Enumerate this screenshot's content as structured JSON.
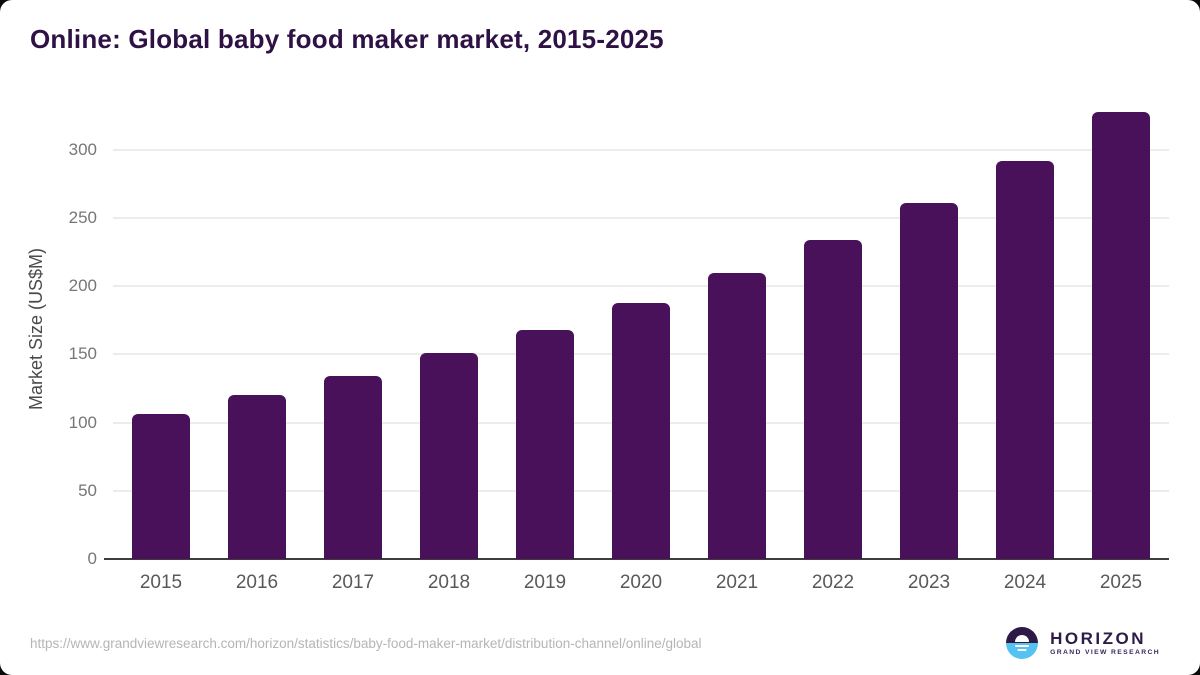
{
  "header": {
    "title": "Online: Global baby food maker market, 2015-2025"
  },
  "chart_data": {
    "type": "bar",
    "title": "Online: Global baby food maker market, 2015-2025",
    "categories": [
      "2015",
      "2016",
      "2017",
      "2018",
      "2019",
      "2020",
      "2021",
      "2022",
      "2023",
      "2024",
      "2025"
    ],
    "values": [
      106,
      120,
      134,
      151,
      168,
      188,
      210,
      234,
      261,
      292,
      328
    ],
    "xlabel": "",
    "ylabel": "Market Size (US$M)",
    "ylim": [
      0,
      335
    ],
    "y_ticks": [
      0,
      50,
      100,
      150,
      200,
      250,
      300
    ],
    "grid": "horizontal",
    "legend": false,
    "bar_color": "#491159"
  },
  "footer": {
    "source_url": "https://www.grandviewresearch.com/horizon/statistics/baby-food-maker-market/distribution-channel/online/global",
    "logo": {
      "brand": "HORIZON",
      "subbrand": "GRAND VIEW RESEARCH"
    }
  },
  "colors": {
    "bar": "#491159",
    "title_text": "#2f1245",
    "axis_line": "#3d3d3d",
    "gridline": "#ececec",
    "tick_label": "#767676",
    "x_label": "#58595b",
    "y_axis_title": "#4a4a4a",
    "url_text": "#b5b5b5",
    "logo_purple": "#2e1a47",
    "logo_blue": "#54c3f1"
  }
}
